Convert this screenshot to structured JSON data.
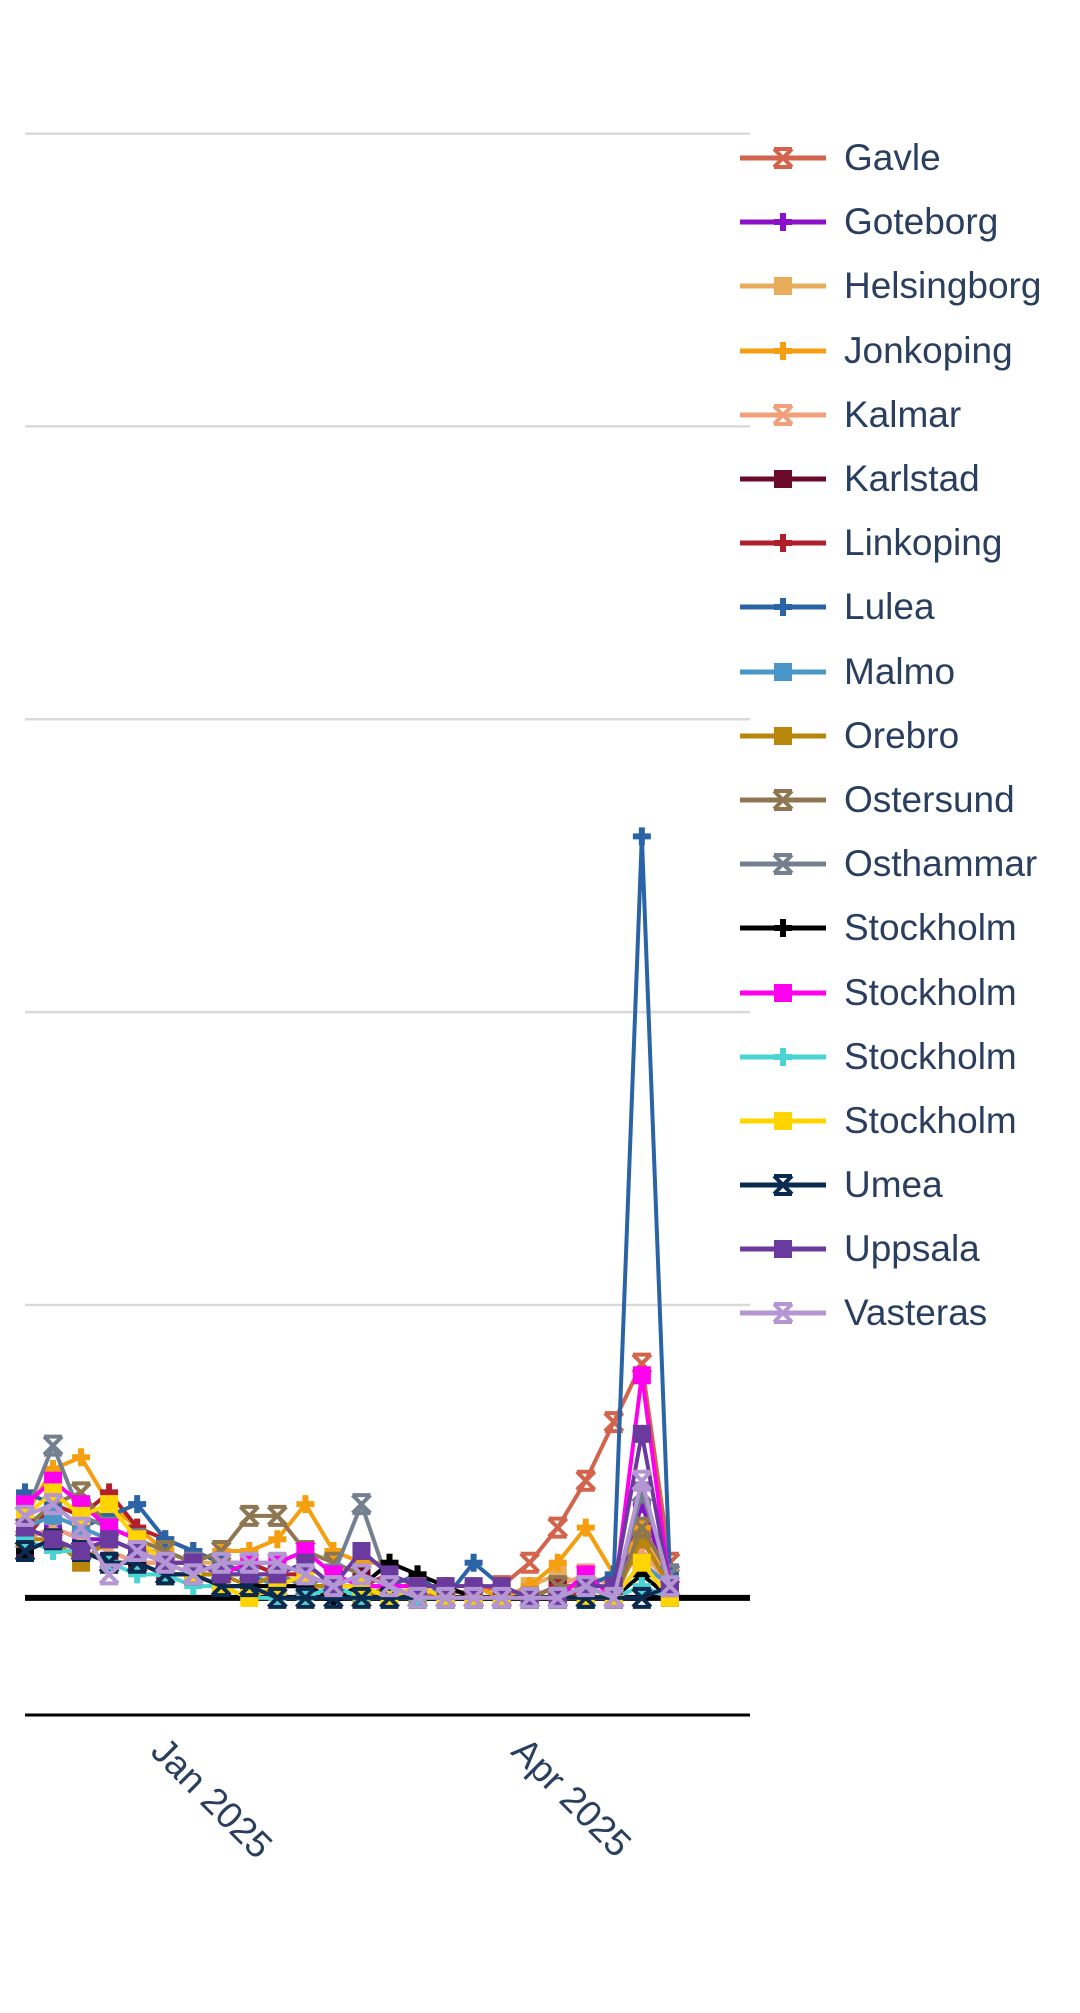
{
  "chart_data": {
    "type": "line",
    "title": "",
    "xlabel": "",
    "ylabel": "",
    "x_ticks": [
      "Jan 2025",
      "Apr 2025"
    ],
    "x_tick_dates": [
      "2025-01-01",
      "2025-04-01"
    ],
    "xlim": [
      "2024-12-01",
      "2025-05-31"
    ],
    "ylim": [
      -1,
      13
    ],
    "y_tick_values": [
      0,
      2.5,
      5,
      7.5,
      10,
      12.5
    ],
    "grid": true,
    "legend_position": "right",
    "dates": [
      "2024-12-01",
      "2024-12-08",
      "2024-12-15",
      "2024-12-22",
      "2024-12-29",
      "2025-01-05",
      "2025-01-12",
      "2025-01-19",
      "2025-01-26",
      "2025-02-02",
      "2025-02-09",
      "2025-02-16",
      "2025-02-23",
      "2025-03-02",
      "2025-03-09",
      "2025-03-16",
      "2025-03-23",
      "2025-03-30",
      "2025-04-06",
      "2025-04-13",
      "2025-04-20",
      "2025-04-27",
      "2025-05-04",
      "2025-05-11"
    ],
    "series": [
      {
        "name": "Gavle",
        "color": "#d4634b",
        "marker": "x",
        "values": [
          0.5,
          0.6,
          0.5,
          0.4,
          0.3,
          0.3,
          0.2,
          0.3,
          0.2,
          0.2,
          0.1,
          0.1,
          0.1,
          0.1,
          0.0,
          0.05,
          0.05,
          0.1,
          0.3,
          0.6,
          1.0,
          1.5,
          2.0,
          0.3
        ]
      },
      {
        "name": "Goteborg",
        "color": "#8b10c9",
        "marker": "cross",
        "values": [
          0.5,
          0.6,
          0.5,
          0.5,
          0.4,
          0.3,
          0.2,
          0.2,
          0.2,
          0.1,
          0.1,
          0.1,
          0.1,
          0.1,
          0.0,
          0.0,
          0.0,
          0.0,
          0.0,
          0.1,
          0.0,
          0.0,
          0.8,
          0.1
        ]
      },
      {
        "name": "Helsingborg",
        "color": "#e8ad5a",
        "marker": "square",
        "values": [
          0.6,
          0.7,
          0.6,
          0.5,
          0.4,
          0.4,
          0.3,
          0.3,
          0.3,
          0.2,
          0.2,
          0.1,
          0.1,
          0.1,
          0.1,
          0.1,
          0.0,
          0.0,
          0.1,
          0.2,
          0.1,
          0.0,
          0.5,
          0.2
        ]
      },
      {
        "name": "Jonkoping",
        "color": "#f59e10",
        "marker": "cross",
        "values": [
          0.7,
          1.1,
          1.2,
          0.8,
          0.6,
          0.4,
          0.3,
          0.4,
          0.4,
          0.5,
          0.8,
          0.4,
          0.3,
          0.3,
          0.2,
          0.1,
          0.1,
          0.0,
          0.1,
          0.3,
          0.6,
          0.2,
          0.6,
          0.2
        ]
      },
      {
        "name": "Kalmar",
        "color": "#f0a07a",
        "marker": "x",
        "values": [
          0.5,
          0.6,
          0.5,
          0.4,
          0.3,
          0.3,
          0.3,
          0.2,
          0.2,
          0.1,
          0.1,
          0.1,
          0.1,
          0.0,
          0.0,
          0.0,
          0.0,
          0.0,
          0.0,
          0.1,
          0.2,
          0.1,
          0.4,
          0.1
        ]
      },
      {
        "name": "Karlstad",
        "color": "#6a0a2a",
        "marker": "square",
        "values": [
          0.4,
          0.5,
          0.4,
          0.3,
          0.3,
          0.2,
          0.2,
          0.1,
          0.1,
          0.1,
          0.1,
          0.1,
          0.2,
          0.1,
          0.0,
          0.0,
          0.0,
          0.0,
          0.0,
          0.1,
          0.1,
          0.0,
          0.3,
          0.0
        ]
      },
      {
        "name": "Linkoping",
        "color": "#b0202c",
        "marker": "cross",
        "values": [
          0.5,
          0.8,
          0.7,
          0.9,
          0.6,
          0.5,
          0.4,
          0.3,
          0.3,
          0.2,
          0.2,
          0.1,
          0.1,
          0.2,
          0.1,
          0.0,
          0.0,
          0.0,
          0.0,
          0.1,
          0.0,
          0.0,
          0.5,
          0.1
        ]
      },
      {
        "name": "Lulea",
        "color": "#2a64a6",
        "marker": "cross",
        "values": [
          0.9,
          0.8,
          0.6,
          0.7,
          0.8,
          0.5,
          0.4,
          0.3,
          0.2,
          0.1,
          0.1,
          0.0,
          0.0,
          0.1,
          0.2,
          0.0,
          0.3,
          0.1,
          0.0,
          0.0,
          0.1,
          0.2,
          6.5,
          0.2
        ]
      },
      {
        "name": "Malmo",
        "color": "#4a96c8",
        "marker": "square",
        "values": [
          0.6,
          0.7,
          0.6,
          0.5,
          0.4,
          0.3,
          0.3,
          0.2,
          0.2,
          0.1,
          0.1,
          0.1,
          0.1,
          0.1,
          0.0,
          0.0,
          0.0,
          0.0,
          0.0,
          0.0,
          0.0,
          0.0,
          0.3,
          0.1
        ]
      },
      {
        "name": "Orebro",
        "color": "#b8860b",
        "marker": "square",
        "values": [
          0.5,
          0.5,
          0.3,
          0.5,
          0.4,
          0.3,
          0.2,
          0.2,
          0.1,
          0.2,
          0.1,
          0.1,
          0.0,
          0.1,
          0.0,
          0.0,
          0.0,
          0.0,
          0.0,
          0.0,
          0.0,
          0.0,
          0.5,
          0.1
        ]
      },
      {
        "name": "Ostersund",
        "color": "#8e7750",
        "marker": "x",
        "values": [
          0.6,
          0.8,
          0.9,
          0.6,
          0.5,
          0.4,
          0.3,
          0.4,
          0.7,
          0.7,
          0.4,
          0.3,
          0.2,
          0.1,
          0.1,
          0.0,
          0.0,
          0.0,
          0.0,
          0.1,
          0.1,
          0.0,
          0.6,
          0.2
        ]
      },
      {
        "name": "Osthammar",
        "color": "#748090",
        "marker": "x",
        "values": [
          0.7,
          1.3,
          0.7,
          0.6,
          0.5,
          0.3,
          0.3,
          0.2,
          0.2,
          0.2,
          0.1,
          0.2,
          0.8,
          0.1,
          0.0,
          0.0,
          0.0,
          0.0,
          0.0,
          0.0,
          0.0,
          0.0,
          0.9,
          0.2
        ]
      },
      {
        "name": "Stockholm",
        "color": "#000000",
        "marker": "cross",
        "values": [
          0.4,
          0.5,
          0.4,
          0.3,
          0.3,
          0.2,
          0.2,
          0.1,
          0.1,
          0.1,
          0.1,
          0.0,
          0.1,
          0.3,
          0.2,
          0.1,
          0.0,
          0.0,
          0.0,
          0.0,
          0.0,
          0.0,
          0.2,
          0.0
        ]
      },
      {
        "name": "Stockholm",
        "color": "#ff00ee",
        "marker": "square",
        "values": [
          0.8,
          1.0,
          0.8,
          0.6,
          0.5,
          0.3,
          0.3,
          0.2,
          0.3,
          0.3,
          0.4,
          0.2,
          0.1,
          0.1,
          0.1,
          0.0,
          0.0,
          0.0,
          0.0,
          0.0,
          0.2,
          0.0,
          1.9,
          0.1
        ]
      },
      {
        "name": "Stockholm",
        "color": "#4ad4d4",
        "marker": "cross",
        "values": [
          0.5,
          0.4,
          0.4,
          0.3,
          0.2,
          0.2,
          0.1,
          0.1,
          0.0,
          0.0,
          0.0,
          0.1,
          0.0,
          0.0,
          0.0,
          0.0,
          0.0,
          0.0,
          0.0,
          0.0,
          0.0,
          0.0,
          0.1,
          0.0
        ]
      },
      {
        "name": "Stockholm",
        "color": "#ffd400",
        "marker": "square",
        "values": [
          0.7,
          0.9,
          0.7,
          0.8,
          0.5,
          0.3,
          0.2,
          0.1,
          0.0,
          0.1,
          0.2,
          0.1,
          0.1,
          0.0,
          0.1,
          0.0,
          0.0,
          0.0,
          0.0,
          0.0,
          0.0,
          0.0,
          0.3,
          0.0
        ]
      },
      {
        "name": "Umea",
        "color": "#0a2a50",
        "marker": "x",
        "values": [
          0.4,
          0.5,
          0.4,
          0.3,
          0.3,
          0.2,
          0.2,
          0.1,
          0.1,
          0.0,
          0.0,
          0.0,
          0.0,
          0.0,
          0.0,
          0.0,
          0.0,
          0.0,
          0.0,
          0.0,
          0.0,
          0.0,
          0.0,
          0.1
        ]
      },
      {
        "name": "Uppsala",
        "color": "#6a3a9e",
        "marker": "square",
        "values": [
          0.6,
          0.5,
          0.4,
          0.5,
          0.4,
          0.3,
          0.3,
          0.2,
          0.2,
          0.2,
          0.3,
          0.1,
          0.4,
          0.2,
          0.1,
          0.1,
          0.1,
          0.1,
          0.0,
          0.0,
          0.1,
          0.1,
          1.4,
          0.1
        ]
      },
      {
        "name": "Vasteras",
        "color": "#b496d4",
        "marker": "x",
        "values": [
          0.7,
          0.8,
          0.6,
          0.2,
          0.4,
          0.3,
          0.2,
          0.3,
          0.3,
          0.3,
          0.2,
          0.1,
          0.2,
          0.1,
          0.0,
          0.0,
          0.0,
          0.0,
          0.0,
          0.0,
          0.1,
          0.0,
          1.0,
          0.1
        ]
      }
    ]
  }
}
